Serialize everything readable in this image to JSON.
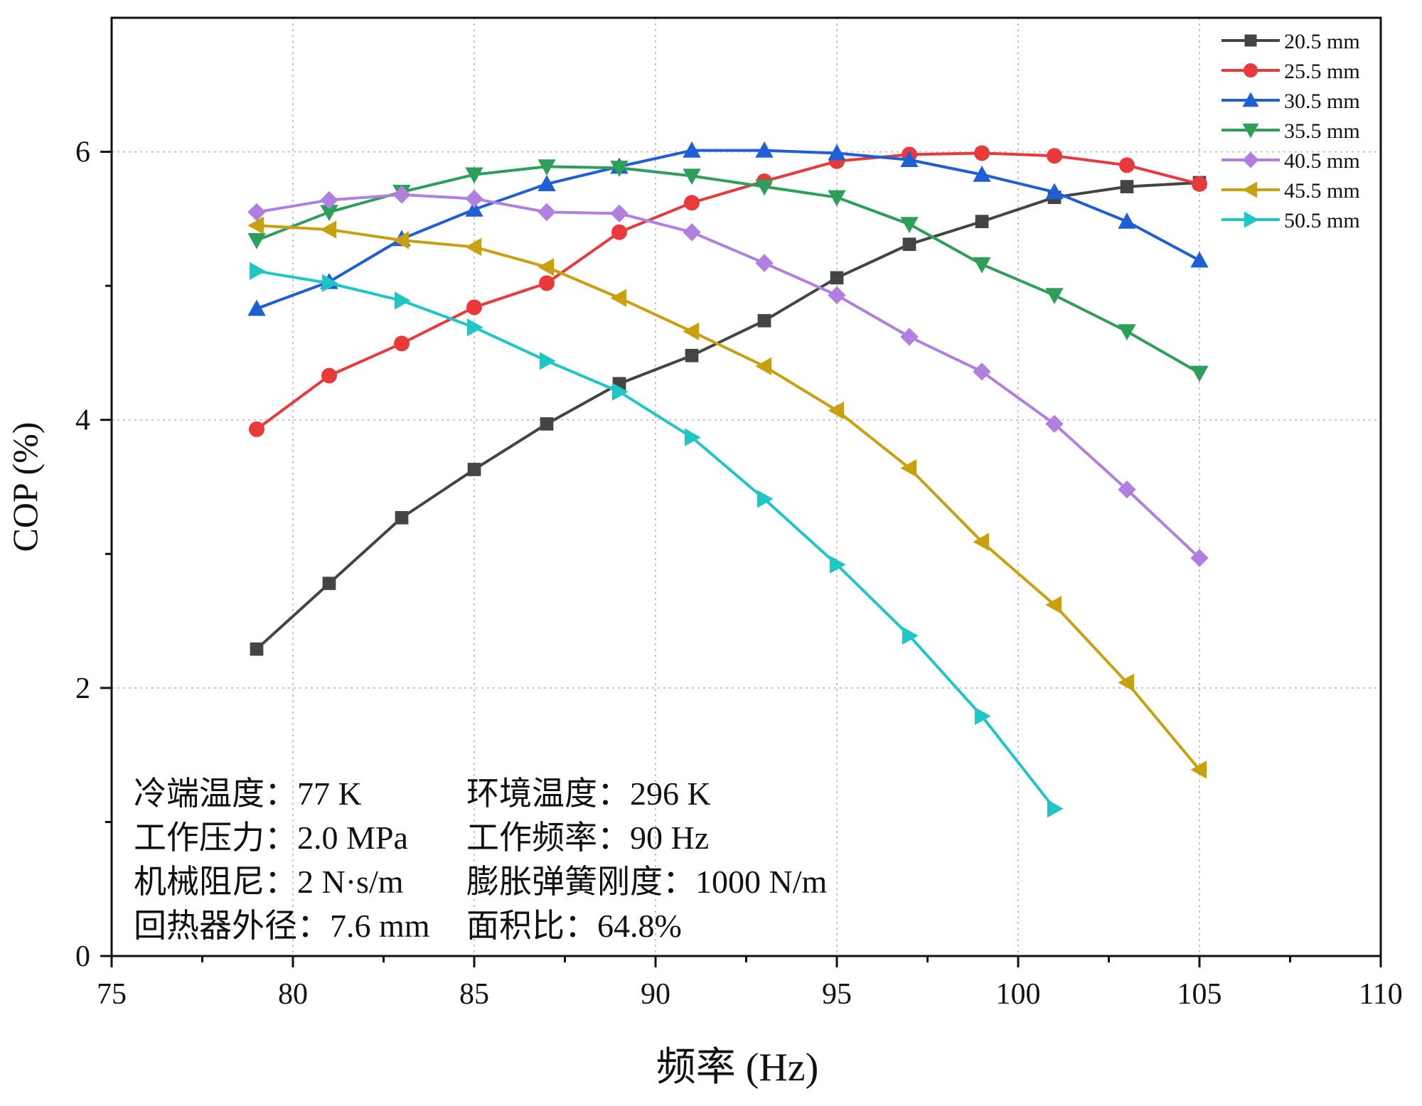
{
  "chart_data": {
    "type": "line",
    "title": "",
    "xlabel": "频率 (Hz)",
    "ylabel": "COP (%)",
    "xlim": [
      75,
      110
    ],
    "ylim": [
      0,
      7
    ],
    "x_ticks": [
      75,
      80,
      85,
      90,
      95,
      100,
      105,
      110
    ],
    "y_ticks": [
      0,
      2,
      4,
      6
    ],
    "grid": true,
    "legend_position": "top-right",
    "x": [
      79,
      81,
      83,
      85,
      87,
      89,
      91,
      93,
      95,
      97,
      99,
      101,
      103,
      105
    ],
    "series": [
      {
        "name": "20.5 mm",
        "color": "#444444",
        "marker": "square",
        "values": [
          2.29,
          2.78,
          3.27,
          3.63,
          3.97,
          4.27,
          4.48,
          4.74,
          5.06,
          5.31,
          5.48,
          5.66,
          5.74,
          5.77
        ]
      },
      {
        "name": "25.5 mm",
        "color": "#e83a3a",
        "marker": "circle",
        "values": [
          3.93,
          4.33,
          4.57,
          4.84,
          5.02,
          5.4,
          5.62,
          5.78,
          5.93,
          5.98,
          5.99,
          5.97,
          5.9,
          5.76
        ]
      },
      {
        "name": "30.5 mm",
        "color": "#1f5fd6",
        "marker": "triangle-up",
        "values": [
          4.83,
          5.03,
          5.35,
          5.57,
          5.76,
          5.89,
          6.01,
          6.01,
          5.99,
          5.94,
          5.83,
          5.7,
          5.48,
          5.19
        ]
      },
      {
        "name": "35.5 mm",
        "color": "#2e9e5b",
        "marker": "triangle-down",
        "values": [
          5.34,
          5.55,
          5.7,
          5.83,
          5.89,
          5.88,
          5.82,
          5.74,
          5.66,
          5.46,
          5.16,
          4.93,
          4.66,
          4.35
        ]
      },
      {
        "name": "40.5 mm",
        "color": "#b07fe0",
        "marker": "diamond",
        "values": [
          5.55,
          5.64,
          5.68,
          5.65,
          5.55,
          5.54,
          5.4,
          5.17,
          4.93,
          4.62,
          4.36,
          3.97,
          3.48,
          2.97
        ]
      },
      {
        "name": "45.5 mm",
        "color": "#c9a010",
        "marker": "triangle-left",
        "values": [
          5.45,
          5.42,
          5.34,
          5.29,
          5.14,
          4.91,
          4.66,
          4.4,
          4.07,
          3.64,
          3.09,
          2.62,
          2.04,
          1.39
        ]
      },
      {
        "name": "50.5 mm",
        "color": "#1ec6c6",
        "marker": "triangle-right",
        "values": [
          5.11,
          5.02,
          4.89,
          4.69,
          4.44,
          4.21,
          3.87,
          3.41,
          2.92,
          2.39,
          1.79,
          1.1,
          null,
          null
        ]
      }
    ],
    "annotations": [
      [
        "冷端温度：77 K",
        "环境温度：296 K"
      ],
      [
        "工作压力：2.0 MPa",
        "工作频率：90 Hz"
      ],
      [
        "机械阻尼：2 N·s/m",
        "膨胀弹簧刚度：1000 N/m"
      ],
      [
        "回热器外径：7.6 mm",
        "面积比：64.8%"
      ]
    ]
  }
}
